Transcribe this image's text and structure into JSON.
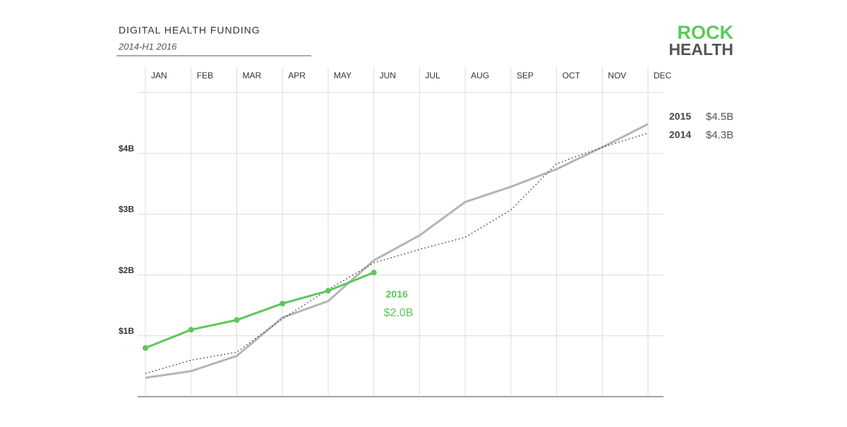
{
  "chart_data": {
    "type": "line",
    "title": "DIGITAL HEALTH FUNDING",
    "subtitle": "2014-H1 2016",
    "logo": [
      "ROCK",
      "HEALTH"
    ],
    "categories": [
      "JAN",
      "FEB",
      "MAR",
      "APR",
      "MAY",
      "JUN",
      "JUL",
      "AUG",
      "SEP",
      "OCT",
      "NOV",
      "DEC"
    ],
    "ylim": [
      0,
      5
    ],
    "yticks": [
      {
        "value": 1,
        "label": "$1B"
      },
      {
        "value": 2,
        "label": "$2B"
      },
      {
        "value": 3,
        "label": "$3B"
      },
      {
        "value": 4,
        "label": "$4B"
      }
    ],
    "grid": true,
    "series": [
      {
        "name": "2015",
        "color": "#b5b5b5",
        "style": "solid",
        "markers": false,
        "values": [
          0.31,
          0.42,
          0.67,
          1.3,
          1.57,
          2.24,
          2.65,
          3.2,
          3.45,
          3.74,
          4.1,
          4.48
        ],
        "value_label": "$4.5B"
      },
      {
        "name": "2014",
        "color": "#333333",
        "style": "dotted",
        "markers": false,
        "values": [
          0.38,
          0.6,
          0.73,
          1.28,
          1.76,
          2.2,
          2.42,
          2.62,
          3.07,
          3.83,
          4.1,
          4.33
        ],
        "value_label": "$4.3B"
      },
      {
        "name": "2016",
        "color": "#5cc85a",
        "style": "solid",
        "markers": true,
        "values": [
          0.8,
          1.1,
          1.26,
          1.53,
          1.74,
          2.04,
          null,
          null,
          null,
          null,
          null,
          null
        ],
        "value_label": "$2.0B"
      }
    ]
  }
}
